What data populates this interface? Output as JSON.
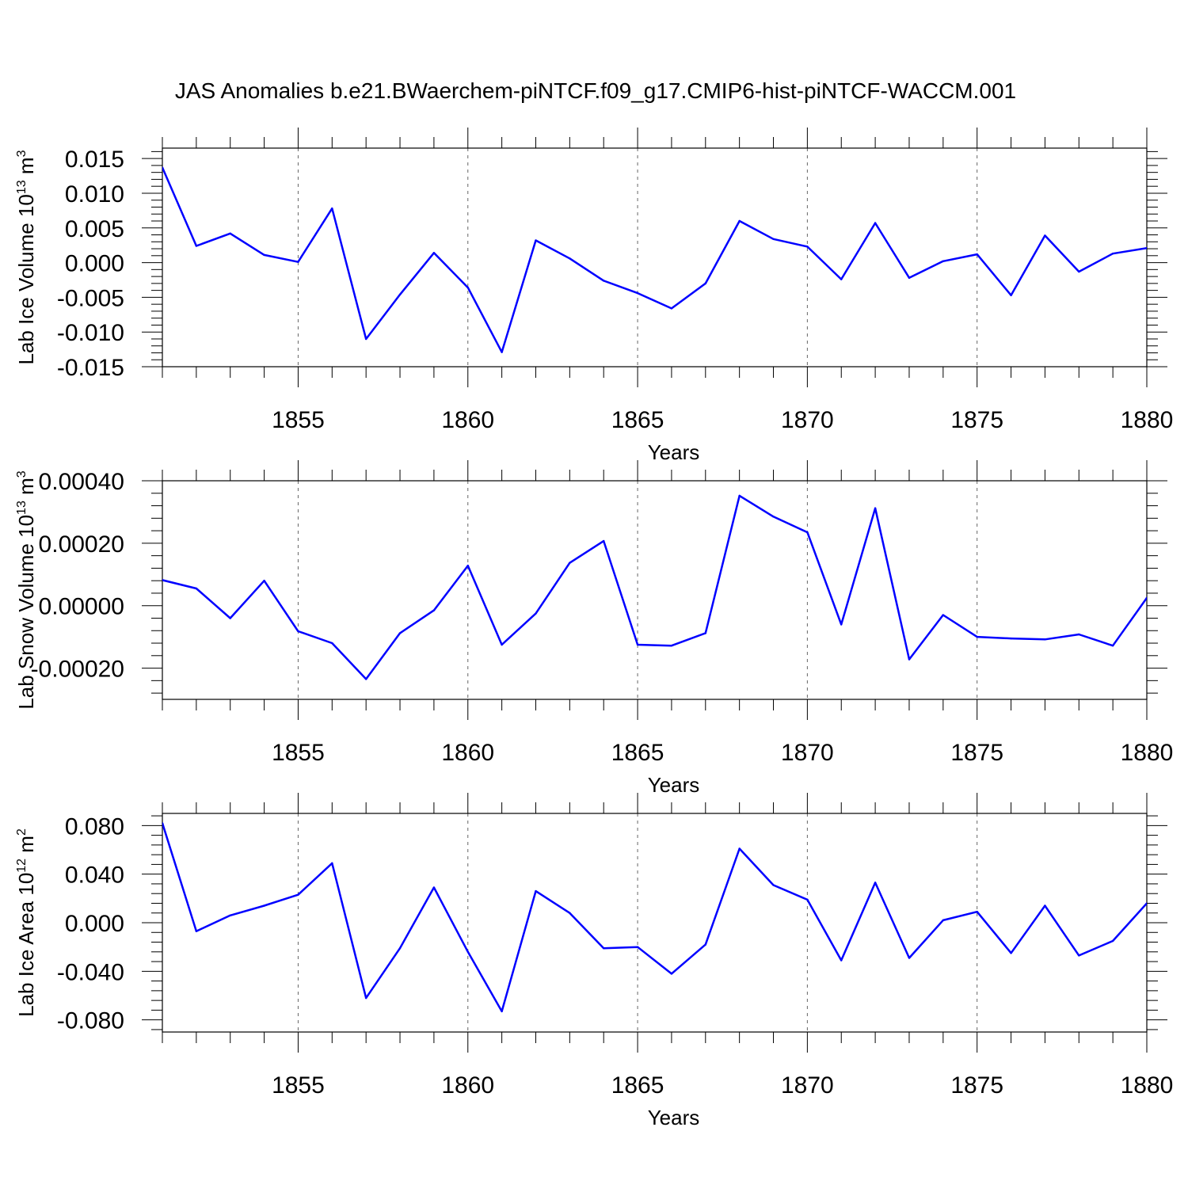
{
  "title": "JAS Anomalies b.e21.BWaerchem-piNTCF.f09_g17.CMIP6-hist-piNTCF-WACCM.001",
  "chart_data": [
    {
      "type": "line",
      "ylabel": "Lab Ice Volume 10",
      "ylabel_sup": "13",
      "ylabel_unit": " m",
      "ylabel_unit_sup": "3",
      "xlabel": "Years",
      "xlim": [
        1851,
        1880
      ],
      "ylim": [
        -0.015,
        0.0165
      ],
      "yticks": [
        -0.015,
        -0.01,
        -0.005,
        0.0,
        0.005,
        0.01,
        0.015
      ],
      "ytick_labels": [
        "-0.015",
        "-0.010",
        "-0.005",
        "0.000",
        "0.005",
        "0.010",
        "0.015"
      ],
      "xticks": [
        1855,
        1860,
        1865,
        1870,
        1875,
        1880
      ],
      "xtick_labels": [
        "1855",
        "1860",
        "1865",
        "1870",
        "1875",
        "1880"
      ],
      "line_color": "#0000ff",
      "x": [
        1851,
        1852,
        1853,
        1854,
        1855,
        1856,
        1857,
        1858,
        1859,
        1860,
        1861,
        1862,
        1863,
        1864,
        1865,
        1866,
        1867,
        1868,
        1869,
        1870,
        1871,
        1872,
        1873,
        1874,
        1875,
        1876,
        1877,
        1878,
        1879,
        1880
      ],
      "values": [
        0.0137,
        0.0024,
        0.0042,
        0.0011,
        0.0001,
        0.0078,
        -0.011,
        -0.0046,
        0.0014,
        -0.0036,
        -0.0129,
        0.0032,
        0.0006,
        -0.0026,
        -0.0044,
        -0.0066,
        -0.003,
        0.006,
        0.0034,
        0.0023,
        -0.0024,
        0.0057,
        -0.0022,
        0.0002,
        0.0012,
        -0.0047,
        0.0039,
        -0.0013,
        0.0013,
        0.0021
      ]
    },
    {
      "type": "line",
      "ylabel": "Lab Snow Volume 10",
      "ylabel_sup": "13",
      "ylabel_unit": " m",
      "ylabel_unit_sup": "3",
      "xlabel": "Years",
      "xlim": [
        1851,
        1880
      ],
      "ylim": [
        -0.0003,
        0.0004
      ],
      "yticks": [
        -0.0002,
        0.0,
        0.0002,
        0.0004
      ],
      "ytick_labels": [
        "-0.00020",
        "0.00000",
        "0.00020",
        "0.00040"
      ],
      "xticks": [
        1855,
        1860,
        1865,
        1870,
        1875,
        1880
      ],
      "xtick_labels": [
        "1855",
        "1860",
        "1865",
        "1870",
        "1875",
        "1880"
      ],
      "line_color": "#0000ff",
      "x": [
        1851,
        1852,
        1853,
        1854,
        1855,
        1856,
        1857,
        1858,
        1859,
        1860,
        1861,
        1862,
        1863,
        1864,
        1865,
        1866,
        1867,
        1868,
        1869,
        1870,
        1871,
        1872,
        1873,
        1874,
        1875,
        1876,
        1877,
        1878,
        1879,
        1880
      ],
      "values": [
        8.2e-05,
        5.5e-05,
        -4e-05,
        8e-05,
        -8.2e-05,
        -0.00012,
        -0.000235,
        -8.8e-05,
        -1.5e-05,
        0.000128,
        -0.000125,
        -2.5e-05,
        0.000137,
        0.000207,
        -0.000125,
        -0.000128,
        -8.8e-05,
        0.000352,
        0.000285,
        0.000235,
        -6e-05,
        0.000312,
        -0.000172,
        -3e-05,
        -0.0001,
        -0.000105,
        -0.000108,
        -9.2e-05,
        -0.000128,
        2.5e-05
      ]
    },
    {
      "type": "line",
      "ylabel": "Lab Ice Area 10",
      "ylabel_sup": "12",
      "ylabel_unit": " m",
      "ylabel_unit_sup": "2",
      "xlabel": "Years",
      "xlim": [
        1851,
        1880
      ],
      "ylim": [
        -0.09,
        0.09
      ],
      "yticks": [
        -0.08,
        -0.04,
        0.0,
        0.04,
        0.08
      ],
      "ytick_labels": [
        "-0.080",
        "-0.040",
        "0.000",
        "0.040",
        "0.080"
      ],
      "xticks": [
        1855,
        1860,
        1865,
        1870,
        1875,
        1880
      ],
      "xtick_labels": [
        "1855",
        "1860",
        "1865",
        "1870",
        "1875",
        "1880"
      ],
      "line_color": "#0000ff",
      "x": [
        1851,
        1852,
        1853,
        1854,
        1855,
        1856,
        1857,
        1858,
        1859,
        1860,
        1861,
        1862,
        1863,
        1864,
        1865,
        1866,
        1867,
        1868,
        1869,
        1870,
        1871,
        1872,
        1873,
        1874,
        1875,
        1876,
        1877,
        1878,
        1879,
        1880
      ],
      "values": [
        0.082,
        -0.007,
        0.006,
        0.014,
        0.023,
        0.049,
        -0.062,
        -0.021,
        0.029,
        -0.024,
        -0.073,
        0.026,
        0.008,
        -0.021,
        -0.02,
        -0.042,
        -0.018,
        0.061,
        0.031,
        0.019,
        -0.031,
        0.033,
        -0.029,
        0.002,
        0.009,
        -0.025,
        0.014,
        -0.027,
        -0.015,
        0.016
      ]
    }
  ]
}
